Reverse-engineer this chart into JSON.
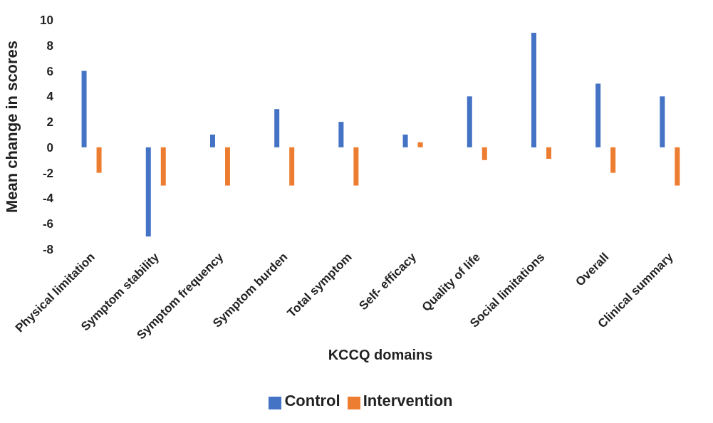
{
  "chart_data": {
    "type": "bar",
    "xlabel": "KCCQ domains",
    "ylabel": "Mean change in scores",
    "categories": [
      "Physical limitation",
      "Symptom stability",
      "Symptom frequency",
      "Symptom burden",
      "Total symptom",
      "Self- efficacy",
      "Quality of life",
      "Social limitations",
      "Overall",
      "Clinical summary"
    ],
    "series": [
      {
        "name": "Control",
        "color": "#4472c4",
        "values": [
          6,
          -7,
          1,
          3,
          2,
          1,
          4,
          9,
          5,
          4
        ]
      },
      {
        "name": "Intervention",
        "color": "#ed7d31",
        "values": [
          -2,
          -3,
          -3,
          -3,
          -3,
          0.4,
          -1,
          -0.9,
          -2,
          -3
        ]
      }
    ],
    "ylim": [
      -8,
      10
    ],
    "yticks": [
      -8,
      -6,
      -4,
      -2,
      0,
      2,
      4,
      6,
      8,
      10
    ],
    "grid": false,
    "legend": "bottom"
  }
}
